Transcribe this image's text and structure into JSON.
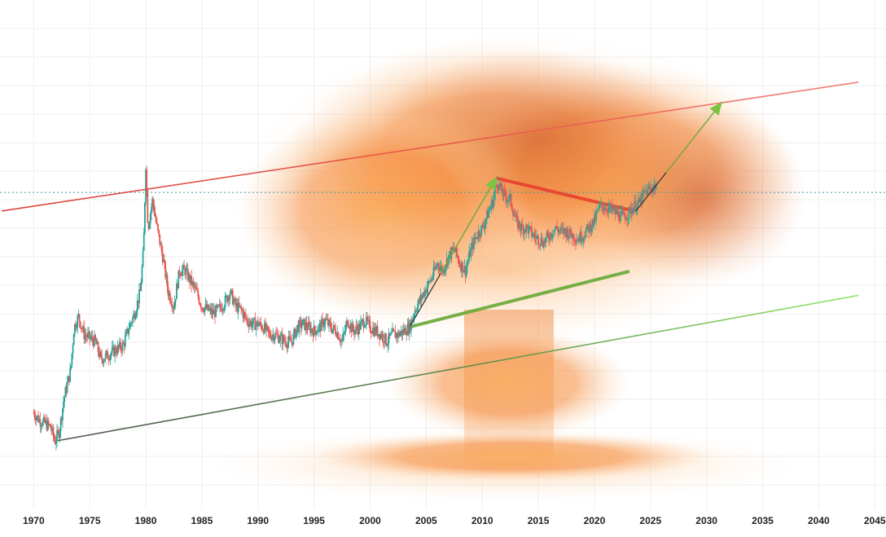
{
  "chart_data": {
    "type": "candlestick",
    "title": "",
    "xlabel": "",
    "ylabel": "",
    "xlim": [
      1967,
      2046
    ],
    "x_ticks": [
      1970,
      1975,
      1980,
      1985,
      1990,
      1995,
      2000,
      2005,
      2010,
      2015,
      2020,
      2025,
      2030,
      2035,
      2040,
      2045
    ],
    "y_axis_labels_visible": false,
    "grid": true,
    "background_image": "mushroom-cloud-explosion",
    "price_path": [
      [
        1970.0,
        0.18
      ],
      [
        1970.5,
        0.16
      ],
      [
        1971.0,
        0.15
      ],
      [
        1971.5,
        0.14
      ],
      [
        1971.9,
        0.1
      ],
      [
        1972.3,
        0.13
      ],
      [
        1972.7,
        0.22
      ],
      [
        1973.0,
        0.26
      ],
      [
        1973.3,
        0.3
      ],
      [
        1973.6,
        0.42
      ],
      [
        1974.0,
        0.45
      ],
      [
        1974.5,
        0.4
      ],
      [
        1975.0,
        0.39
      ],
      [
        1975.5,
        0.38
      ],
      [
        1976.0,
        0.33
      ],
      [
        1976.5,
        0.34
      ],
      [
        1977.0,
        0.35
      ],
      [
        1977.5,
        0.36
      ],
      [
        1978.0,
        0.37
      ],
      [
        1978.5,
        0.42
      ],
      [
        1979.0,
        0.46
      ],
      [
        1979.5,
        0.52
      ],
      [
        1979.8,
        0.64
      ],
      [
        1980.0,
        0.88
      ],
      [
        1980.2,
        0.7
      ],
      [
        1980.6,
        0.78
      ],
      [
        1981.0,
        0.7
      ],
      [
        1981.5,
        0.62
      ],
      [
        1982.0,
        0.52
      ],
      [
        1982.5,
        0.48
      ],
      [
        1983.0,
        0.58
      ],
      [
        1983.5,
        0.58
      ],
      [
        1984.0,
        0.55
      ],
      [
        1984.5,
        0.52
      ],
      [
        1985.0,
        0.48
      ],
      [
        1985.5,
        0.47
      ],
      [
        1986.0,
        0.46
      ],
      [
        1986.5,
        0.47
      ],
      [
        1987.0,
        0.49
      ],
      [
        1987.5,
        0.52
      ],
      [
        1988.0,
        0.48
      ],
      [
        1988.5,
        0.47
      ],
      [
        1989.0,
        0.44
      ],
      [
        1989.5,
        0.43
      ],
      [
        1990.0,
        0.43
      ],
      [
        1990.5,
        0.42
      ],
      [
        1991.0,
        0.4
      ],
      [
        1991.5,
        0.4
      ],
      [
        1992.0,
        0.39
      ],
      [
        1992.5,
        0.38
      ],
      [
        1993.0,
        0.38
      ],
      [
        1993.5,
        0.42
      ],
      [
        1994.0,
        0.43
      ],
      [
        1994.5,
        0.42
      ],
      [
        1995.0,
        0.41
      ],
      [
        1995.5,
        0.42
      ],
      [
        1996.0,
        0.44
      ],
      [
        1996.5,
        0.42
      ],
      [
        1997.0,
        0.41
      ],
      [
        1997.5,
        0.38
      ],
      [
        1998.0,
        0.44
      ],
      [
        1998.5,
        0.41
      ],
      [
        1999.0,
        0.42
      ],
      [
        1999.5,
        0.44
      ],
      [
        2000.0,
        0.42
      ],
      [
        2000.5,
        0.41
      ],
      [
        2001.0,
        0.4
      ],
      [
        2001.5,
        0.38
      ],
      [
        2002.0,
        0.4
      ],
      [
        2002.5,
        0.4
      ],
      [
        2003.0,
        0.41
      ],
      [
        2003.5,
        0.42
      ],
      [
        2004.0,
        0.47
      ],
      [
        2004.5,
        0.5
      ],
      [
        2005.0,
        0.53
      ],
      [
        2005.5,
        0.56
      ],
      [
        2006.0,
        0.6
      ],
      [
        2006.5,
        0.58
      ],
      [
        2007.0,
        0.62
      ],
      [
        2007.5,
        0.64
      ],
      [
        2008.0,
        0.6
      ],
      [
        2008.5,
        0.58
      ],
      [
        2009.0,
        0.64
      ],
      [
        2009.5,
        0.68
      ],
      [
        2010.0,
        0.7
      ],
      [
        2010.5,
        0.74
      ],
      [
        2011.0,
        0.78
      ],
      [
        2011.3,
        0.83
      ],
      [
        2011.8,
        0.8
      ],
      [
        2012.0,
        0.79
      ],
      [
        2012.5,
        0.78
      ],
      [
        2013.0,
        0.72
      ],
      [
        2013.5,
        0.7
      ],
      [
        2014.0,
        0.7
      ],
      [
        2014.5,
        0.68
      ],
      [
        2015.0,
        0.67
      ],
      [
        2015.5,
        0.66
      ],
      [
        2016.0,
        0.68
      ],
      [
        2016.5,
        0.7
      ],
      [
        2017.0,
        0.69
      ],
      [
        2017.5,
        0.69
      ],
      [
        2018.0,
        0.68
      ],
      [
        2018.5,
        0.67
      ],
      [
        2019.0,
        0.68
      ],
      [
        2019.5,
        0.7
      ],
      [
        2020.0,
        0.72
      ],
      [
        2020.5,
        0.76
      ],
      [
        2021.0,
        0.76
      ],
      [
        2021.5,
        0.75
      ],
      [
        2022.0,
        0.74
      ],
      [
        2022.5,
        0.73
      ],
      [
        2023.0,
        0.74
      ],
      [
        2023.5,
        0.76
      ],
      [
        2024.0,
        0.77
      ],
      [
        2024.5,
        0.8
      ],
      [
        2025.0,
        0.81
      ],
      [
        2025.5,
        0.82
      ]
    ],
    "trendlines": [
      {
        "name": "upper-channel",
        "color": "#e8432f",
        "x": [
          1967.2,
          2043.5
        ],
        "y": [
          0.748,
          1.11
        ]
      },
      {
        "name": "lower-channel",
        "color": "#5a8a4e",
        "x": [
          1971.9,
          2043.5
        ],
        "y": [
          0.1,
          0.51
        ]
      },
      {
        "name": "resistance-line",
        "color": "#e8432f",
        "x": [
          2011.4,
          2023.5
        ],
        "y": [
          0.839,
          0.748
        ]
      },
      {
        "name": "support-line",
        "color": "#6aaa3a",
        "x": [
          2003.6,
          2023.0
        ],
        "y": [
          0.422,
          0.577
        ]
      }
    ],
    "arrows": [
      {
        "name": "arrow-2004-2011",
        "color": "#7cc440",
        "x": [
          2003.6,
          2011.3
        ],
        "y": [
          0.425,
          0.845
        ]
      },
      {
        "name": "arrow-2023-2031",
        "color": "#7cc440",
        "x": [
          2023.7,
          2031.4
        ],
        "y": [
          0.748,
          1.055
        ]
      }
    ],
    "last_price_line": {
      "y": 0.8,
      "color": "#3a9aa8"
    },
    "colors": {
      "up_candle": "#26a69a",
      "down_candle": "#ef5350",
      "tick_text": "#222222",
      "grid": "#eeeeee"
    }
  }
}
